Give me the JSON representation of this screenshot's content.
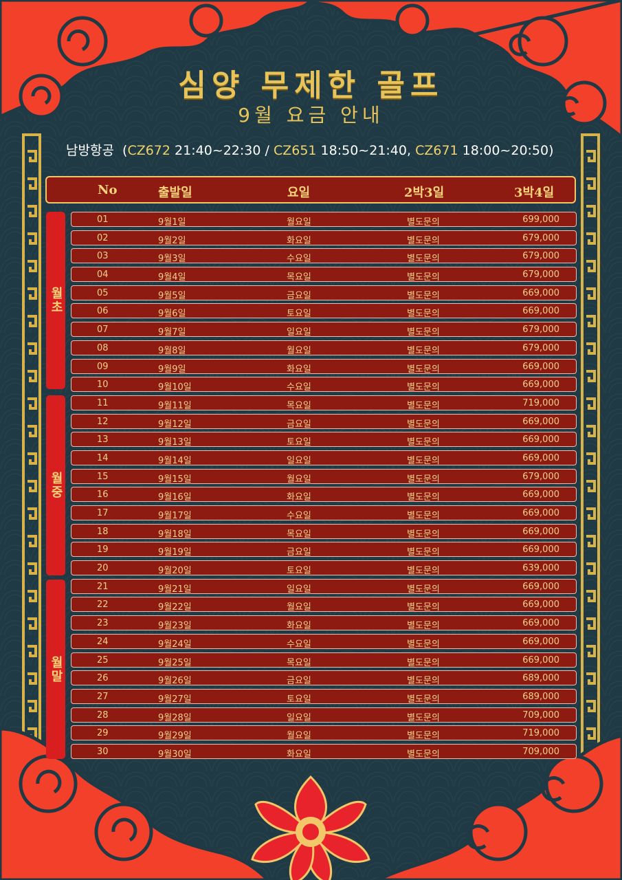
{
  "title": "심양 무제한 골프",
  "subtitle": "9월 요금 안내",
  "airline": {
    "name": "남방항공",
    "open": "(",
    "flight1_code": "CZ672",
    "flight1_time": " 21:40~22:30 / ",
    "flight2_code": "CZ651",
    "flight2_time": " 18:50~21:40, ",
    "flight3_code": "CZ671",
    "flight3_time": " 18:00~20:50)"
  },
  "table": {
    "headers": [
      "No",
      "출발일",
      "요일",
      "2박3일",
      "3박4일"
    ],
    "groups": [
      "월초",
      "월중",
      "월말"
    ],
    "rows": [
      [
        "01",
        "9월1일",
        "월요일",
        "별도문의",
        "699,000"
      ],
      [
        "02",
        "9월2일",
        "화요일",
        "별도문의",
        "679,000"
      ],
      [
        "03",
        "9월3일",
        "수요일",
        "별도문의",
        "679,000"
      ],
      [
        "04",
        "9월4일",
        "목요일",
        "별도문의",
        "679,000"
      ],
      [
        "05",
        "9월5일",
        "금요일",
        "별도문의",
        "669,000"
      ],
      [
        "06",
        "9월6일",
        "토요일",
        "별도문의",
        "669,000"
      ],
      [
        "07",
        "9월7일",
        "일요일",
        "별도문의",
        "679,000"
      ],
      [
        "08",
        "9월8일",
        "월요일",
        "별도문의",
        "679,000"
      ],
      [
        "09",
        "9월9일",
        "화요일",
        "별도문의",
        "669,000"
      ],
      [
        "10",
        "9월10일",
        "수요일",
        "별도문의",
        "669,000"
      ],
      [
        "11",
        "9월11일",
        "목요일",
        "별도문의",
        "719,000"
      ],
      [
        "12",
        "9월12일",
        "금요일",
        "별도문의",
        "669,000"
      ],
      [
        "13",
        "9월13일",
        "토요일",
        "별도문의",
        "669,000"
      ],
      [
        "14",
        "9월14일",
        "일요일",
        "별도문의",
        "669,000"
      ],
      [
        "15",
        "9월15일",
        "월요일",
        "별도문의",
        "679,000"
      ],
      [
        "16",
        "9월16일",
        "화요일",
        "별도문의",
        "669,000"
      ],
      [
        "17",
        "9월17일",
        "수요일",
        "별도문의",
        "669,000"
      ],
      [
        "18",
        "9월18일",
        "목요일",
        "별도문의",
        "669,000"
      ],
      [
        "19",
        "9월19일",
        "금요일",
        "별도문의",
        "669,000"
      ],
      [
        "20",
        "9월20일",
        "토요일",
        "별도문의",
        "639,000"
      ],
      [
        "21",
        "9월21일",
        "일요일",
        "별도문의",
        "669,000"
      ],
      [
        "22",
        "9월22일",
        "월요일",
        "별도문의",
        "669,000"
      ],
      [
        "23",
        "9월23일",
        "화요일",
        "별도문의",
        "669,000"
      ],
      [
        "24",
        "9월24일",
        "수요일",
        "별도문의",
        "669,000"
      ],
      [
        "25",
        "9월25일",
        "목요일",
        "별도문의",
        "669,000"
      ],
      [
        "26",
        "9월26일",
        "금요일",
        "별도문의",
        "689,000"
      ],
      [
        "27",
        "9월27일",
        "토요일",
        "별도문의",
        "689,000"
      ],
      [
        "28",
        "9월28일",
        "일요일",
        "별도문의",
        "709,000"
      ],
      [
        "29",
        "9월29일",
        "월요일",
        "별도문의",
        "719,000"
      ],
      [
        "30",
        "9월30일",
        "화요일",
        "별도문의",
        "709,000"
      ]
    ]
  },
  "colors": {
    "background": "#1f3a44",
    "cloud": "#f2402b",
    "gold": "#e8c35a",
    "row": "#8e1b12",
    "group_tab": "#d81e1e"
  },
  "icons": [
    "cloud-decoration",
    "gold-meander-border",
    "lotus-flower-icon"
  ]
}
